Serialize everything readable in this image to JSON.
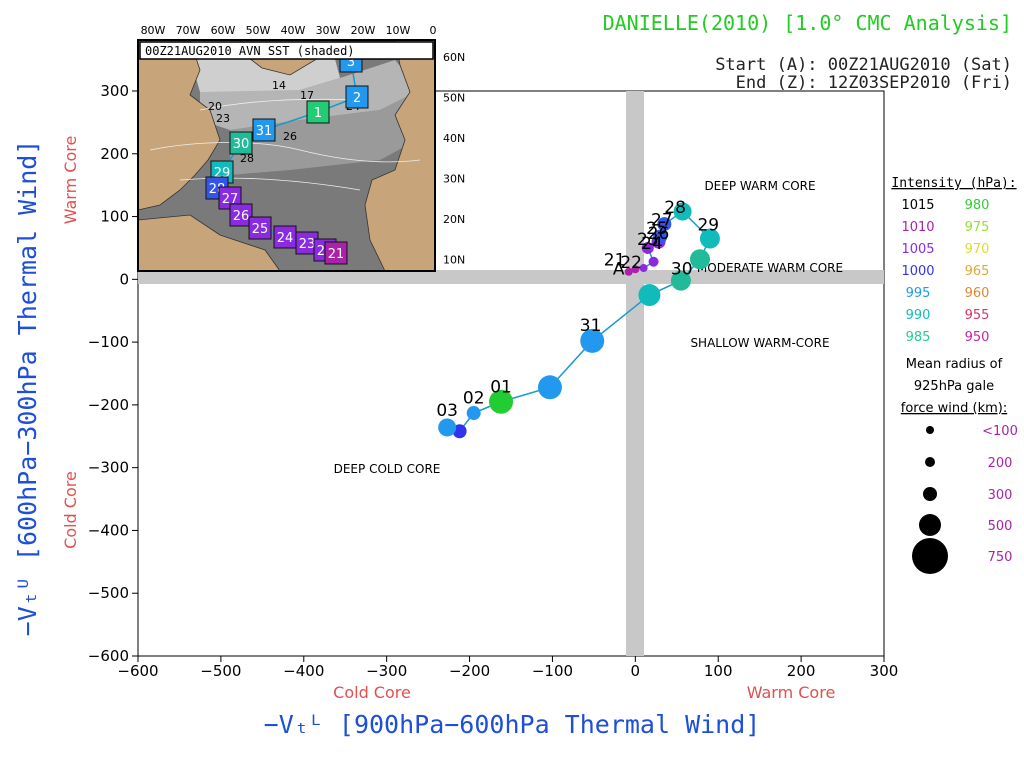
{
  "header": {
    "title": "DANIELLE(2010) [1.0° CMC Analysis]",
    "start": "Start (A): 00Z21AUG2010 (Sat)",
    "end": "End (Z): 12Z03SEP2010 (Fri)"
  },
  "colors": {
    "title": "#22cc22",
    "axis_label": "#1d4fd8",
    "core_label": "#e05050",
    "track_line": "#1a9acb",
    "axis_band": "#c8c8c8"
  },
  "region_labels": {
    "deep_warm": "DEEP WARM CORE",
    "moderate_warm": "MODERATE WARM CORE",
    "shallow_warm": "SHALLOW WARM-CORE",
    "deep_cold": "DEEP COLD CORE"
  },
  "axis_labels": {
    "x_main": "−Vₜᴸ [900hPa−600hPa Thermal Wind]",
    "y_main": "−Vₜᵁ [600hPa−300hPa Thermal Wind]",
    "x_left_core": "Cold Core",
    "x_right_core": "Warm Core",
    "y_top_core": "Warm Core",
    "y_bottom_core": "Cold Core"
  },
  "legend": {
    "intensity_title": "Intensity (hPa):",
    "intensity": [
      {
        "left": "1015",
        "left_color": "#000000",
        "right": "980",
        "right_color": "#33cc33"
      },
      {
        "left": "1010",
        "left_color": "#aa22aa",
        "right": "975",
        "right_color": "#99dd33"
      },
      {
        "left": "1005",
        "left_color": "#8a2be2",
        "right": "970",
        "right_color": "#dddd33"
      },
      {
        "left": "1000",
        "left_color": "#3333ee",
        "right": "965",
        "right_color": "#ddaa33"
      },
      {
        "left": "995",
        "left_color": "#2299ee",
        "right": "960",
        "right_color": "#dd8833"
      },
      {
        "left": "990",
        "left_color": "#11bbbb",
        "right": "955",
        "right_color": "#dd3366"
      },
      {
        "left": "985",
        "left_color": "#22cc99",
        "right": "950",
        "right_color": "#cc22aa"
      }
    ],
    "radius_title_1": "Mean radius of",
    "radius_title_2": "925hPa gale",
    "radius_title_3": "force wind (km):",
    "radii": [
      {
        "label": "<100"
      },
      {
        "label": "200"
      },
      {
        "label": "300"
      },
      {
        "label": "500"
      },
      {
        "label": "750"
      }
    ],
    "radius_color": "#aa22aa"
  },
  "inset": {
    "label": "00Z21AUG2010 AVN SST (shaded)",
    "lon_labels": [
      "80W",
      "70W",
      "60W",
      "50W",
      "40W",
      "30W",
      "20W",
      "10W",
      "0"
    ],
    "lat_labels": [
      "60N",
      "50N",
      "40N",
      "30N",
      "20N",
      "10N"
    ],
    "sst_labels": [
      "14",
      "17",
      "20",
      "23",
      "26",
      "28",
      "24"
    ],
    "track_boxes": [
      {
        "label": "3",
        "color": "#2299ee"
      },
      {
        "label": "2",
        "color": "#2299ee"
      },
      {
        "label": "1",
        "color": "#22cc77"
      },
      {
        "label": "31",
        "color": "#2299ee"
      },
      {
        "label": "30",
        "color": "#22bb99"
      },
      {
        "label": "29",
        "color": "#11bbbb"
      },
      {
        "label": "28",
        "color": "#3355ee"
      },
      {
        "label": "27",
        "color": "#8a2be2"
      },
      {
        "label": "26",
        "color": "#8a2be2"
      },
      {
        "label": "25",
        "color": "#8a2be2"
      },
      {
        "label": "24",
        "color": "#8a2be2"
      },
      {
        "label": "23",
        "color": "#8a2be2"
      },
      {
        "label": "22",
        "color": "#8a2be2"
      },
      {
        "label": "21",
        "color": "#aa22aa"
      }
    ]
  },
  "chart_data": {
    "type": "scatter",
    "title": "DANIELLE(2010) [1.0° CMC Analysis]",
    "xlabel": "−Vₜᴸ [900hPa−600hPa Thermal Wind]",
    "ylabel": "−Vₜᵁ [600hPa−300hPa Thermal Wind]",
    "xlim": [
      -600,
      300
    ],
    "ylim": [
      -600,
      300
    ],
    "xticks": [
      -600,
      -500,
      -400,
      -300,
      -200,
      -100,
      0,
      100,
      200,
      300
    ],
    "yticks": [
      -600,
      -500,
      -400,
      -300,
      -200,
      -100,
      0,
      100,
      200,
      300
    ],
    "xtick_labels": [
      "−600",
      "−500",
      "−400",
      "−300",
      "−200",
      "−100",
      "0",
      "100",
      "200",
      "300"
    ],
    "ytick_labels": [
      "−600",
      "−500",
      "−400",
      "−300",
      "−200",
      "−100",
      "0",
      "100",
      "200",
      "300"
    ],
    "grid": false,
    "points": [
      {
        "x": -8,
        "y": 12,
        "color": "#aa22aa",
        "r": 4
      },
      {
        "x": 0,
        "y": 16,
        "color": "#aa22aa",
        "r": 4
      },
      {
        "x": 10,
        "y": 18,
        "color": "#8a2be2",
        "r": 4
      },
      {
        "x": 22,
        "y": 28,
        "color": "#8a2be2",
        "r": 5
      },
      {
        "x": 15,
        "y": 50,
        "color": "#8a2be2",
        "r": 6
      },
      {
        "x": 28,
        "y": 60,
        "color": "#8a2be2",
        "r": 7
      },
      {
        "x": 30,
        "y": 68,
        "color": "#3355ee",
        "r": 7
      },
      {
        "x": 35,
        "y": 88,
        "color": "#3355ee",
        "r": 7
      },
      {
        "x": 57,
        "y": 108,
        "color": "#11bbbb",
        "r": 9
      },
      {
        "x": 90,
        "y": 65,
        "color": "#11bbbb",
        "r": 10
      },
      {
        "x": 78,
        "y": 32,
        "color": "#22bb99",
        "r": 10
      },
      {
        "x": 55,
        "y": -2,
        "color": "#22bb99",
        "r": 10
      },
      {
        "x": 17,
        "y": -25,
        "color": "#11bbbb",
        "r": 11
      },
      {
        "x": -52,
        "y": -98,
        "color": "#2299ee",
        "r": 12
      },
      {
        "x": -103,
        "y": -172,
        "color": "#2299ee",
        "r": 12
      },
      {
        "x": -162,
        "y": -195,
        "color": "#22cc33",
        "r": 12
      },
      {
        "x": -195,
        "y": -213,
        "color": "#2299ee",
        "r": 7
      },
      {
        "x": -212,
        "y": -242,
        "color": "#3333ee",
        "r": 7
      },
      {
        "x": -227,
        "y": -236,
        "color": "#2299ee",
        "r": 9
      }
    ],
    "labels": [
      {
        "text": "A",
        "x": -20,
        "y": 8
      },
      {
        "text": "21",
        "x": -25,
        "y": 22
      },
      {
        "text": "22",
        "x": -5,
        "y": 18
      },
      {
        "text": "23",
        "x": 15,
        "y": 55
      },
      {
        "text": "24",
        "x": 20,
        "y": 48
      },
      {
        "text": "25",
        "x": 26,
        "y": 72
      },
      {
        "text": "26",
        "x": 28,
        "y": 64
      },
      {
        "text": "27",
        "x": 32,
        "y": 86
      },
      {
        "text": "28",
        "x": 48,
        "y": 106
      },
      {
        "text": "29",
        "x": 88,
        "y": 78
      },
      {
        "text": "30",
        "x": 56,
        "y": 8
      },
      {
        "text": "31",
        "x": -54,
        "y": -82
      },
      {
        "text": "01",
        "x": -162,
        "y": -180
      },
      {
        "text": "02",
        "x": -195,
        "y": -198
      },
      {
        "text": "03",
        "x": -227,
        "y": -218
      }
    ]
  }
}
